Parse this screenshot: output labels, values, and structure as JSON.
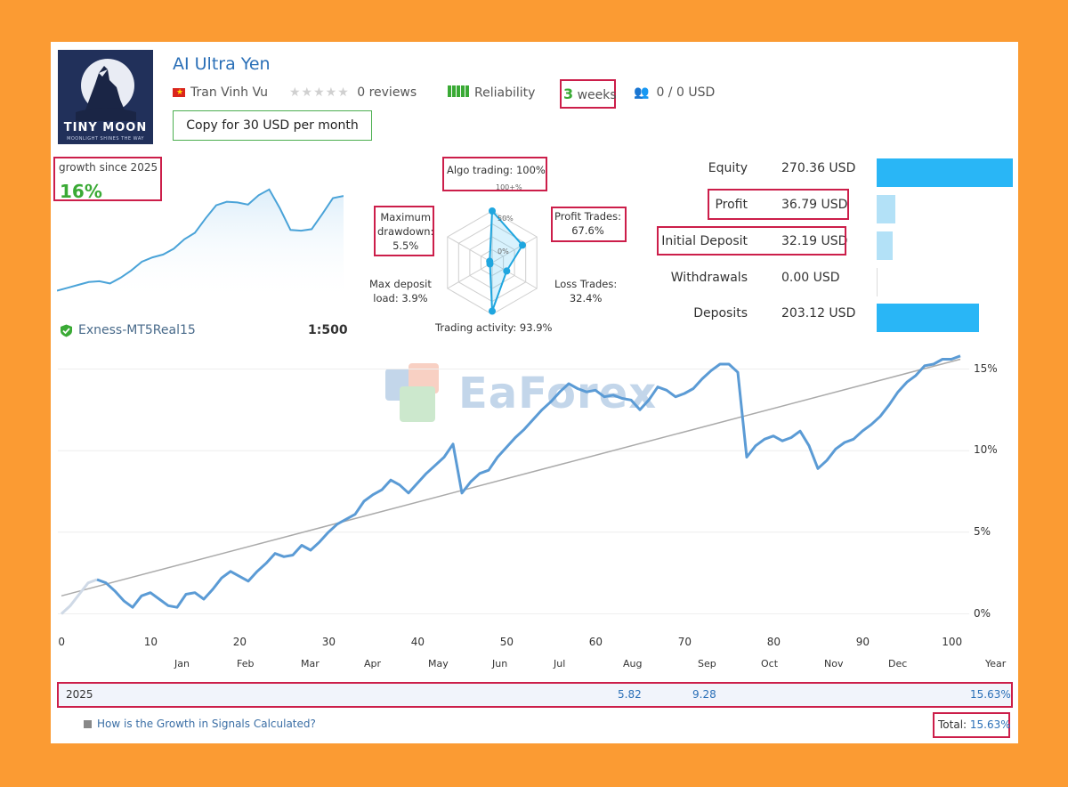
{
  "header": {
    "title": "AI Ultra Yen",
    "author": "Tran Vinh Vu",
    "reviews": "0 reviews",
    "reliability": "Reliability",
    "weeks_num": "3",
    "weeks_word": "weeks",
    "subscribers": "0 / 0 USD",
    "copy_button": "Copy for 30 USD per month",
    "stars_rating": 0
  },
  "logo": {
    "name": "TINY MOON",
    "tagline": "MOONLIGHT SHINES THE WAY"
  },
  "growth": {
    "label": "growth since 2025",
    "value": "16%"
  },
  "account": {
    "broker": "Exness-MT5Real15",
    "leverage": "1:500"
  },
  "radar": {
    "algo": "Algo trading: 100%",
    "profit_l1": "Profit Trades:",
    "profit_l2": "67.6%",
    "loss_l1": "Loss Trades:",
    "loss_l2": "32.4%",
    "activity": "Trading activity: 93.9%",
    "maxload_l1": "Max deposit",
    "maxload_l2": "load: 3.9%",
    "dd_l1": "Maximum",
    "dd_l2": "drawdown:",
    "dd_l3": "5.5%",
    "ring_100": "100+%",
    "ring_50": "50%",
    "ring_0": "0%",
    "values": {
      "algo": 100,
      "profit": 67.6,
      "loss": 32.4,
      "activity": 93.9,
      "maxload": 3.9,
      "drawdown": 5.5
    }
  },
  "stats": [
    {
      "label": "Equity",
      "value": "270.36 USD",
      "amount": 270.36
    },
    {
      "label": "Profit",
      "value": "36.79 USD",
      "amount": 36.79
    },
    {
      "label": "Initial Deposit",
      "value": "32.19 USD",
      "amount": 32.19
    },
    {
      "label": "Withdrawals",
      "value": "0.00 USD",
      "amount": 0
    },
    {
      "label": "Deposits",
      "value": "203.12 USD",
      "amount": 203.12
    }
  ],
  "chart_data": {
    "type": "line",
    "x_ticks": [
      "0",
      "10",
      "20",
      "30",
      "40",
      "50",
      "60",
      "70",
      "80",
      "90",
      "100"
    ],
    "months": [
      "Jan",
      "Feb",
      "Mar",
      "Apr",
      "May",
      "Jun",
      "Jul",
      "Aug",
      "Sep",
      "Oct",
      "Nov",
      "Dec",
      "Year"
    ],
    "y_ticks": [
      "0%",
      "5%",
      "10%",
      "15%"
    ],
    "xlim": [
      0,
      101
    ],
    "ylim": [
      -1.5,
      16.5
    ],
    "trend": {
      "x": [
        0,
        101
      ],
      "y": [
        1.1,
        15.6
      ]
    },
    "growth_pct": {
      "x": [
        0,
        1,
        2,
        3,
        4,
        5,
        6,
        7,
        8,
        9,
        10,
        11,
        12,
        13,
        14,
        15,
        16,
        17,
        18,
        19,
        20,
        21,
        22,
        23,
        24,
        25,
        26,
        27,
        28,
        29,
        30,
        31,
        32,
        33,
        34,
        35,
        36,
        37,
        38,
        39,
        40,
        41,
        42,
        43,
        44,
        45,
        46,
        47,
        48,
        49,
        50,
        51,
        52,
        53,
        54,
        55,
        56,
        57,
        58,
        59,
        60,
        61,
        62,
        63,
        64,
        65,
        66,
        67,
        68,
        69,
        70,
        71,
        72,
        73,
        74,
        75,
        76,
        77,
        78,
        79,
        80,
        81,
        82,
        83,
        84,
        85,
        86,
        87,
        88,
        89,
        90,
        91,
        92,
        93,
        94,
        95,
        96,
        97,
        98,
        99,
        100,
        101
      ],
      "y": [
        0,
        0.5,
        1.2,
        1.9,
        2.1,
        1.9,
        1.4,
        0.8,
        0.4,
        1.1,
        1.3,
        0.9,
        0.5,
        0.4,
        1.2,
        1.3,
        0.9,
        1.5,
        2.2,
        2.6,
        2.3,
        2.0,
        2.6,
        3.1,
        3.7,
        3.5,
        3.6,
        4.2,
        3.9,
        4.4,
        5.0,
        5.5,
        5.8,
        6.1,
        6.9,
        7.3,
        7.6,
        8.2,
        7.9,
        7.4,
        8.0,
        8.6,
        9.1,
        9.6,
        10.4,
        7.4,
        8.1,
        8.6,
        8.8,
        9.6,
        10.2,
        10.8,
        11.3,
        11.9,
        12.5,
        13.0,
        13.6,
        14.1,
        13.8,
        13.6,
        13.7,
        13.3,
        13.4,
        13.2,
        13.1,
        12.5,
        13.1,
        13.9,
        13.7,
        13.3,
        13.5,
        13.8,
        14.4,
        14.9,
        15.3,
        15.3,
        14.8,
        9.6,
        10.3,
        10.7,
        10.9,
        10.6,
        10.8,
        11.2,
        10.3,
        8.9,
        9.4,
        10.1,
        10.5,
        10.7,
        11.2,
        11.6,
        12.1,
        12.8,
        13.6,
        14.2,
        14.6,
        15.2,
        15.3,
        15.6,
        15.6,
        15.8
      ]
    },
    "year_row": {
      "year": "2025",
      "aug": "5.82",
      "sep": "9.28",
      "total": "15.63%"
    },
    "total_label": "Total:",
    "total_value": "15.63%"
  },
  "mini_chart": {
    "y": [
      0.8,
      1.2,
      1.6,
      2.0,
      2.1,
      1.8,
      2.6,
      3.6,
      4.8,
      5.4,
      5.8,
      6.6,
      7.9,
      8.8,
      10.8,
      12.6,
      13.1,
      13.0,
      12.7,
      14.0,
      14.8,
      12.2,
      9.2,
      9.1,
      9.3,
      11.4,
      13.6,
      13.9
    ]
  },
  "help_link": "How is the Growth in Signals Calculated?",
  "watermark": "EaForex"
}
